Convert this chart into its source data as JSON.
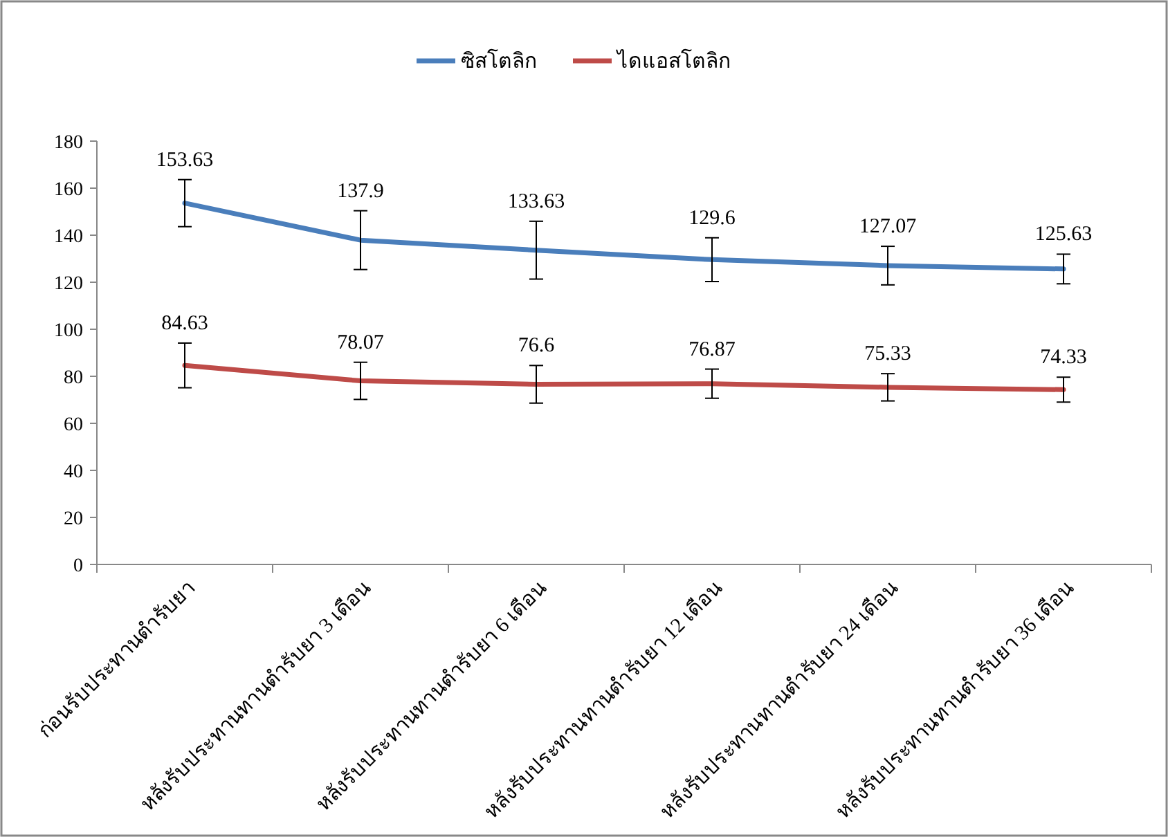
{
  "chart_data": {
    "type": "line",
    "categories": [
      "ก่อนรับประทานตำรับยา",
      "หลังรับประทานทานตำรับยา 3 เดือน",
      "หลังรับประทานทานตำรับยา 6 เดือน",
      "หลังรับประทานทานตำรับยา 12 เดือน",
      "หลังรับประทานทานตำรับยา 24 เดือน",
      "หลังรับประทานทานตำรับยา 36 เดือน"
    ],
    "series": [
      {
        "name": "ซิสโตลิก",
        "color": "#4a7ebb",
        "values": [
          153.63,
          137.9,
          133.63,
          129.6,
          127.07,
          125.63
        ],
        "errors": [
          10,
          12.5,
          12.3,
          9.3,
          8.2,
          6.3
        ]
      },
      {
        "name": "ไดแอสโตลิก",
        "color": "#be4b48",
        "values": [
          84.63,
          78.07,
          76.6,
          76.87,
          75.33,
          74.33
        ],
        "errors": [
          9.5,
          7.9,
          8,
          6.2,
          5.8,
          5.3
        ]
      }
    ],
    "ylim": [
      0,
      180
    ],
    "yticks": [
      0,
      20,
      40,
      60,
      80,
      100,
      120,
      140,
      160,
      180
    ],
    "data_labels": true,
    "legend": "top",
    "grid": false,
    "marker": "none",
    "line_style": "solid"
  }
}
